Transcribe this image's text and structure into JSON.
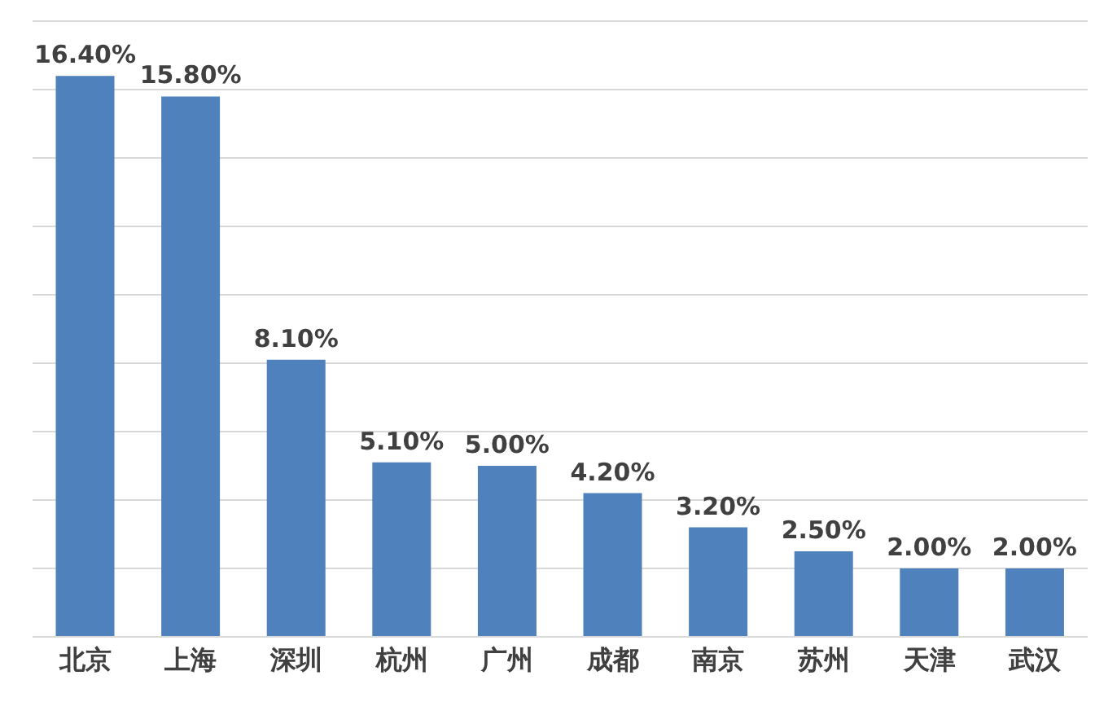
{
  "chart_data": {
    "type": "bar",
    "categories": [
      "北京",
      "上海",
      "深圳",
      "杭州",
      "广州",
      "成都",
      "南京",
      "苏州",
      "天津",
      "武汉"
    ],
    "values": [
      16.4,
      15.8,
      8.1,
      5.1,
      5.0,
      4.2,
      3.2,
      2.5,
      2.0,
      2.0
    ],
    "value_labels": [
      "16.40%",
      "15.80%",
      "8.10%",
      "5.10%",
      "5.00%",
      "4.20%",
      "3.20%",
      "2.50%",
      "2.00%",
      "2.00%"
    ],
    "color": "#4f81bd",
    "ylim": [
      0,
      18
    ],
    "grid": "y",
    "tick_labels": "x"
  }
}
